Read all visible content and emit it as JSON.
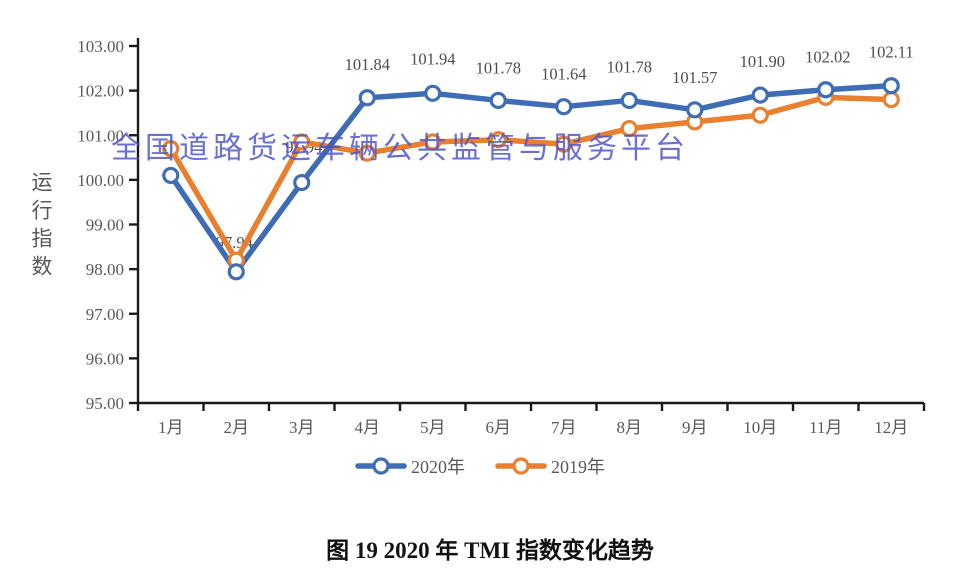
{
  "watermark": {
    "text": "全国道路货运车辆公共监管与服务平台",
    "color": "#4a52c8"
  },
  "caption": {
    "text": "图 19  2020 年 TMI 指数变化趋势"
  },
  "chart_data": {
    "type": "line",
    "title": "",
    "xlabel": "",
    "ylabel": "运行指数",
    "ylim": [
      95,
      103
    ],
    "y_ticks": [
      "95.00",
      "96.00",
      "97.00",
      "98.00",
      "99.00",
      "100.00",
      "101.00",
      "102.00",
      "103.00"
    ],
    "grid": false,
    "legend_position": "bottom",
    "categories": [
      "1月",
      "2月",
      "3月",
      "4月",
      "5月",
      "6月",
      "7月",
      "8月",
      "9月",
      "10月",
      "11月",
      "12月"
    ],
    "axis_color": "#1a1a1a",
    "tick_label_color": "#595959",
    "data_label_color": "#4d4d4d",
    "series": [
      {
        "name": "2020年",
        "color": "#3e6db5",
        "values": [
          100.1,
          97.94,
          99.94,
          101.84,
          101.94,
          101.78,
          101.64,
          101.78,
          101.57,
          101.9,
          102.02,
          102.11
        ],
        "point_labels": [
          null,
          "97.94",
          "99.94",
          "101.84",
          "101.94",
          "101.78",
          "101.64",
          "101.78",
          "101.57",
          "101.90",
          "102.02",
          "102.11"
        ],
        "label_offsets": [
          null,
          [
            -2,
            -24
          ],
          [
            2,
            -30
          ],
          [
            0,
            -28
          ],
          [
            0,
            -29
          ],
          [
            0,
            -27
          ],
          [
            0,
            -27
          ],
          [
            0,
            -28
          ],
          [
            0,
            -27
          ],
          [
            2,
            -28
          ],
          [
            2,
            -27
          ],
          [
            0,
            -28
          ]
        ]
      },
      {
        "name": "2019年",
        "color": "#e8802f",
        "values": [
          100.7,
          98.2,
          100.85,
          100.6,
          100.85,
          100.9,
          100.8,
          101.15,
          101.3,
          101.45,
          101.85,
          101.8
        ],
        "point_labels": [
          null,
          null,
          null,
          null,
          null,
          null,
          null,
          null,
          null,
          null,
          null,
          null
        ],
        "label_offsets": []
      }
    ]
  }
}
